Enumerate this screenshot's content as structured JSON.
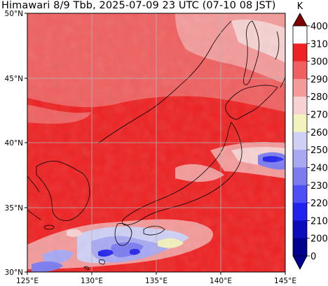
{
  "title": "Himawari 8/9 Tbb, 2025-07-09 23 UTC (07-10 08 JST)",
  "map": {
    "lon_range": [
      125,
      145
    ],
    "lat_range": [
      30,
      50
    ],
    "x_ticks": [
      "125°E",
      "130°E",
      "135°E",
      "140°E",
      "145°E"
    ],
    "y_ticks": [
      "50°N",
      "45°N",
      "40°N",
      "35°N",
      "30°N"
    ],
    "grid": true
  },
  "colorbar": {
    "unit": "K",
    "labels": [
      "400",
      "310",
      "300",
      "290",
      "280",
      "270",
      "260",
      "250",
      "240",
      "230",
      "220",
      "210",
      "200",
      "0"
    ],
    "colors": [
      "#ffffff",
      "#ee2222",
      "#f06060",
      "#f49a9a",
      "#f7d2d2",
      "#f3f3bd",
      "#d0d0f6",
      "#a8a8f3",
      "#7c7cf0",
      "#4f4ff6",
      "#2222ee",
      "#0c0cbb",
      "#00008f"
    ],
    "cap_top_color": "#7f0000",
    "cap_bottom_color": "#00008f"
  }
}
